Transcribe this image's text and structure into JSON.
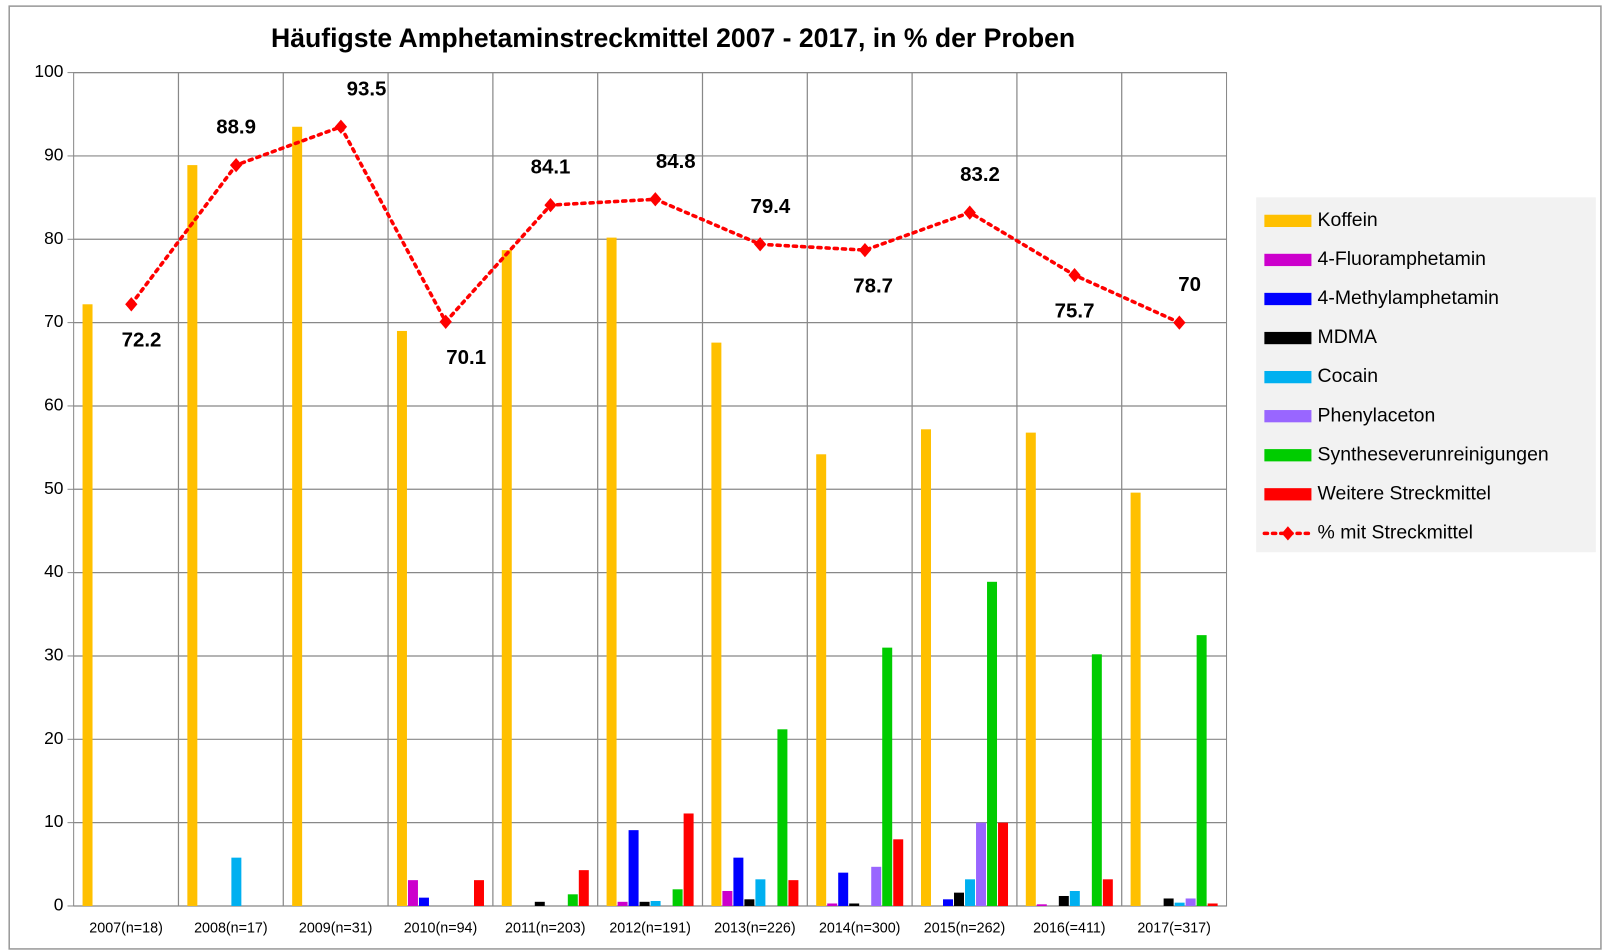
{
  "chart_data": {
    "type": "bar",
    "title": "Häufigste Amphetaminstreckmittel 2007 - 2017, in % der Proben",
    "categories": [
      "2007(n=18)",
      "2008(n=17)",
      "2009(n=31)",
      "2010(n=94)",
      "2011(n=203)",
      "2012(n=191)",
      "2013(n=226)",
      "2014(n=300)",
      "2015(n=262)",
      "2016(=411)",
      "2017(=317)"
    ],
    "series": [
      {
        "name": "Koffein",
        "color": "#ffc000",
        "values": [
          72.2,
          88.9,
          93.5,
          69.0,
          78.7,
          80.2,
          67.6,
          54.2,
          57.2,
          56.8,
          49.6
        ]
      },
      {
        "name": "4-Fluoramphetamin",
        "color": "#cc00cc",
        "values": [
          0,
          0,
          0,
          3.1,
          0,
          0.5,
          1.8,
          0.3,
          0,
          0.2,
          0
        ]
      },
      {
        "name": "4-Methylamphetamin",
        "color": "#0000ff",
        "values": [
          0,
          0,
          0,
          1.0,
          0,
          9.1,
          5.8,
          4.0,
          0.8,
          0,
          0
        ]
      },
      {
        "name": "MDMA",
        "color": "#000000",
        "values": [
          0,
          0,
          0,
          0,
          0.5,
          0.5,
          0.8,
          0.3,
          1.6,
          1.2,
          0.9
        ]
      },
      {
        "name": "Cocain",
        "color": "#00b0f0",
        "values": [
          0,
          5.8,
          0,
          0,
          0,
          0.6,
          3.2,
          0,
          3.2,
          1.8,
          0.4
        ]
      },
      {
        "name": "Phenylaceton",
        "color": "#9966ff",
        "values": [
          0,
          0,
          0,
          0,
          0,
          0,
          0,
          4.7,
          10.0,
          0,
          0.9
        ]
      },
      {
        "name": "Syntheseverunreinigungen",
        "color": "#00cc00",
        "values": [
          0,
          0,
          0,
          0,
          1.4,
          2.0,
          21.2,
          31.0,
          38.9,
          30.2,
          32.5
        ]
      },
      {
        "name": "Weitere Streckmittel",
        "color": "#ff0000",
        "values": [
          0,
          0,
          0,
          3.1,
          4.3,
          11.1,
          3.1,
          8.0,
          10.0,
          3.2,
          0.3
        ]
      }
    ],
    "line_series": {
      "name": "% mit Streckmittel",
      "color": "#ff0000",
      "values": [
        72.2,
        88.9,
        93.5,
        70.1,
        84.1,
        84.8,
        79.4,
        78.7,
        83.2,
        75.7,
        70
      ]
    },
    "ylim": [
      0,
      100
    ],
    "yticks": [
      0,
      10,
      20,
      30,
      40,
      50,
      60,
      70,
      80,
      90,
      100
    ],
    "grid": true,
    "legend": "right"
  }
}
